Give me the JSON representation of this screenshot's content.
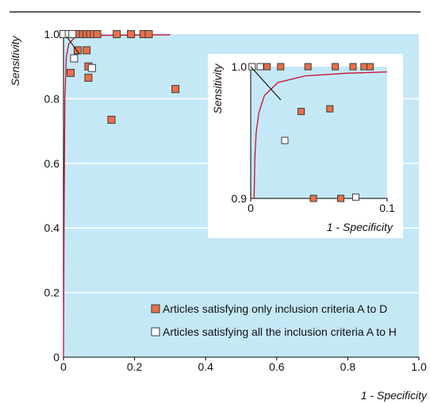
{
  "colors": {
    "plot_bg": "#c5e8f7",
    "curve": "#c8102e",
    "marker_a_d": "#e8704a",
    "marker_a_h": "#ffffff",
    "marker_stroke": "#3a3a3a"
  },
  "chart_data": [
    {
      "type": "scatter",
      "role": "main",
      "xlabel": "1 - Specificity",
      "ylabel": "Sensitivity",
      "xlim": [
        0,
        1.0
      ],
      "ylim": [
        0,
        1.0
      ],
      "xticks": [
        "0",
        "0.2",
        "0.4",
        "0.6",
        "0.8",
        "1.0"
      ],
      "yticks": [
        "0",
        "0.2",
        "0.4",
        "0.6",
        "0.8",
        "1.0"
      ],
      "grid": "horizontal",
      "legend_position": "bottom-right",
      "series": [
        {
          "name": "Articles satisfying only inclusion criteria A to D",
          "marker": "square-filled",
          "points": [
            [
              0.005,
              1.0
            ],
            [
              0.02,
              1.0
            ],
            [
              0.035,
              1.0
            ],
            [
              0.045,
              1.0
            ],
            [
              0.055,
              1.0
            ],
            [
              0.065,
              1.0
            ],
            [
              0.075,
              1.0
            ],
            [
              0.085,
              1.0
            ],
            [
              0.095,
              1.0
            ],
            [
              0.15,
              1.0
            ],
            [
              0.19,
              1.0
            ],
            [
              0.225,
              1.0
            ],
            [
              0.24,
              1.0
            ],
            [
              0.02,
              0.88
            ],
            [
              0.04,
              0.95
            ],
            [
              0.065,
              0.95
            ],
            [
              0.07,
              0.9
            ],
            [
              0.07,
              0.865
            ],
            [
              0.135,
              0.735
            ],
            [
              0.315,
              0.83
            ]
          ]
        },
        {
          "name": "Articles satisfying all the inclusion criteria A to H",
          "marker": "square-open",
          "points": [
            [
              0.0,
              1.0
            ],
            [
              0.015,
              1.0
            ],
            [
              0.025,
              1.0
            ],
            [
              0.03,
              0.925
            ],
            [
              0.08,
              0.895
            ]
          ]
        }
      ],
      "curve": {
        "name": "fitted ROC curve",
        "points": [
          [
            0.0,
            0.0
          ],
          [
            0.002,
            0.5
          ],
          [
            0.004,
            0.8
          ],
          [
            0.008,
            0.93
          ],
          [
            0.015,
            0.97
          ],
          [
            0.03,
            0.988
          ],
          [
            0.06,
            0.994
          ],
          [
            0.1,
            0.996
          ],
          [
            0.2,
            0.997
          ],
          [
            0.3,
            0.998
          ]
        ]
      }
    },
    {
      "type": "scatter",
      "role": "inset",
      "xlabel": "1 - Specificity",
      "ylabel": "Sensitivity",
      "xlim": [
        0,
        0.1
      ],
      "ylim": [
        0.9,
        1.0
      ],
      "xticks": [
        "0",
        "0.1"
      ],
      "yticks": [
        "0.9",
        "1.0"
      ],
      "series": [
        {
          "name": "Articles satisfying only inclusion criteria A to D",
          "marker": "square-filled",
          "points": [
            [
              0.012,
              1.0
            ],
            [
              0.022,
              1.0
            ],
            [
              0.042,
              1.0
            ],
            [
              0.062,
              1.0
            ],
            [
              0.075,
              1.0
            ],
            [
              0.083,
              1.0
            ],
            [
              0.0875,
              1.0
            ],
            [
              0.037,
              0.966
            ],
            [
              0.058,
              0.968
            ],
            [
              0.046,
              0.9
            ],
            [
              0.066,
              0.9
            ]
          ]
        },
        {
          "name": "Articles satisfying all the inclusion criteria A to H",
          "marker": "square-open",
          "points": [
            [
              0.001,
              1.0
            ],
            [
              0.007,
              1.0
            ],
            [
              0.025,
              0.944
            ],
            [
              0.077,
              0.901
            ]
          ]
        }
      ],
      "curve": {
        "name": "fitted ROC curve",
        "points": [
          [
            0.0025,
            0.9
          ],
          [
            0.003,
            0.93
          ],
          [
            0.004,
            0.95
          ],
          [
            0.006,
            0.965
          ],
          [
            0.01,
            0.978
          ],
          [
            0.02,
            0.988
          ],
          [
            0.04,
            0.993
          ],
          [
            0.07,
            0.995
          ],
          [
            0.1,
            0.996
          ]
        ]
      }
    }
  ]
}
